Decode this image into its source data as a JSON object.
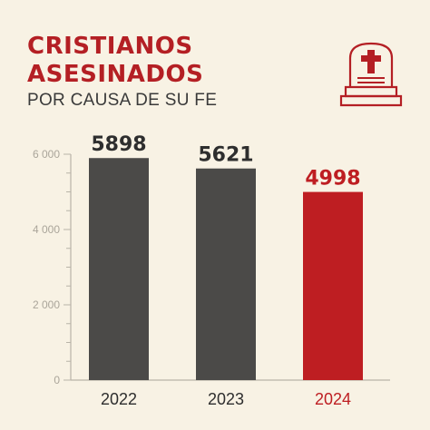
{
  "header": {
    "title_line1": "CRISTIANOS",
    "title_line2": "ASESINADOS",
    "subtitle": "POR CAUSA DE SU FE"
  },
  "icon": {
    "name": "tombstone-cross-icon",
    "color": "#b41f24"
  },
  "chart_data": {
    "type": "bar",
    "categories": [
      "2022",
      "2023",
      "2024"
    ],
    "values": [
      5898,
      5621,
      4998
    ],
    "data_labels": [
      "5898",
      "5621",
      "4998"
    ],
    "title": "CRISTIANOS ASESINADOS",
    "subtitle": "POR CAUSA DE SU FE",
    "xlabel": "",
    "ylabel": "",
    "ylim": [
      0,
      6000
    ],
    "yticks": [
      0,
      2000,
      4000,
      6000
    ],
    "ytick_labels": [
      "0",
      "2 000",
      "4 000",
      "6 000"
    ],
    "grid": false,
    "legend": "none",
    "colors": [
      "#4b4a48",
      "#4b4a48",
      "#be1e22"
    ],
    "label_colors": [
      "#2e2e2e",
      "#2e2e2e",
      "#be1e22"
    ],
    "axis_color": "#b9b4a8",
    "tick_label_color": "#aaa59a"
  }
}
